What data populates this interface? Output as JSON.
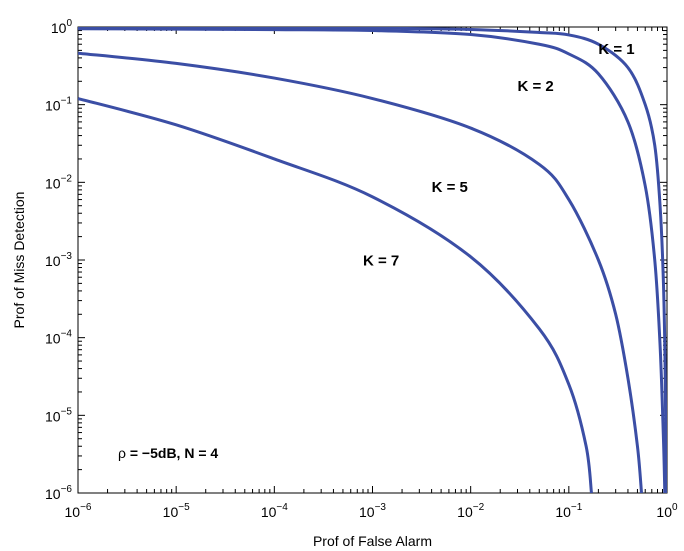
{
  "chart_data": {
    "type": "line",
    "title": "",
    "xlabel": "Prof of False Alarm",
    "ylabel": "Prof of Miss Detection",
    "xscale": "log",
    "yscale": "log",
    "xlim": [
      1e-06,
      1
    ],
    "ylim": [
      1e-06,
      1
    ],
    "grid": false,
    "series_color": "#3b4ea5",
    "x_ticks": [
      {
        "base": "10",
        "exp": "−6"
      },
      {
        "base": "10",
        "exp": "−5"
      },
      {
        "base": "10",
        "exp": "−4"
      },
      {
        "base": "10",
        "exp": "−3"
      },
      {
        "base": "10",
        "exp": "−2"
      },
      {
        "base": "10",
        "exp": "−1"
      },
      {
        "base": "10",
        "exp": "0"
      }
    ],
    "y_ticks": [
      {
        "base": "10",
        "exp": "−6"
      },
      {
        "base": "10",
        "exp": "−5"
      },
      {
        "base": "10",
        "exp": "−4"
      },
      {
        "base": "10",
        "exp": "−3"
      },
      {
        "base": "10",
        "exp": "−2"
      },
      {
        "base": "10",
        "exp": "−1"
      },
      {
        "base": "10",
        "exp": "0"
      }
    ],
    "series": [
      {
        "label": "K = 1",
        "points": [
          [
            1e-06,
            0.99
          ],
          [
            1e-05,
            0.985
          ],
          [
            0.0001,
            0.978
          ],
          [
            0.001,
            0.965
          ],
          [
            0.01,
            0.93
          ],
          [
            0.05,
            0.85
          ],
          [
            0.1,
            0.79
          ],
          [
            0.2,
            0.6
          ],
          [
            0.4,
            0.3
          ],
          [
            0.6,
            0.1
          ],
          [
            0.75,
            0.03
          ],
          [
            0.85,
            0.005
          ],
          [
            0.92,
            0.0005
          ],
          [
            0.96,
            3e-05
          ],
          [
            0.98,
            1e-06
          ]
        ]
      },
      {
        "label": "K = 2",
        "points": [
          [
            1e-06,
            0.95
          ],
          [
            1e-05,
            0.94
          ],
          [
            0.0001,
            0.925
          ],
          [
            0.001,
            0.9
          ],
          [
            0.01,
            0.8
          ],
          [
            0.05,
            0.6
          ],
          [
            0.1,
            0.45
          ],
          [
            0.2,
            0.25
          ],
          [
            0.4,
            0.06
          ],
          [
            0.6,
            0.009
          ],
          [
            0.75,
            0.001
          ],
          [
            0.85,
            8e-05
          ],
          [
            0.92,
            5e-06
          ],
          [
            0.95,
            1e-06
          ]
        ]
      },
      {
        "label": "K = 5",
        "points": [
          [
            1e-06,
            0.46
          ],
          [
            1e-05,
            0.34
          ],
          [
            0.0001,
            0.22
          ],
          [
            0.001,
            0.12
          ],
          [
            0.01,
            0.05
          ],
          [
            0.05,
            0.017
          ],
          [
            0.1,
            0.006
          ],
          [
            0.2,
            0.001
          ],
          [
            0.3,
            0.0002
          ],
          [
            0.4,
            3e-05
          ],
          [
            0.5,
            4e-06
          ],
          [
            0.55,
            1e-06
          ]
        ]
      },
      {
        "label": "K = 7",
        "points": [
          [
            1e-06,
            0.12
          ],
          [
            1e-05,
            0.055
          ],
          [
            0.0001,
            0.02
          ],
          [
            0.001,
            0.0065
          ],
          [
            0.01,
            0.0011
          ],
          [
            0.05,
            0.00013
          ],
          [
            0.1,
            2.5e-05
          ],
          [
            0.15,
            4e-06
          ],
          [
            0.17,
            1e-06
          ]
        ]
      }
    ],
    "curve_labels": [
      {
        "text": "K = 1",
        "x": 0.2,
        "y": 0.45
      },
      {
        "text": "K = 2",
        "x": 0.03,
        "y": 0.15
      },
      {
        "text": "K = 5",
        "x": 0.004,
        "y": 0.0075
      },
      {
        "text": "K = 7",
        "x": 0.0008,
        "y": 0.00085
      }
    ],
    "annotation": {
      "symbol": "ρ",
      "text": " = −5dB, N = 4"
    }
  }
}
